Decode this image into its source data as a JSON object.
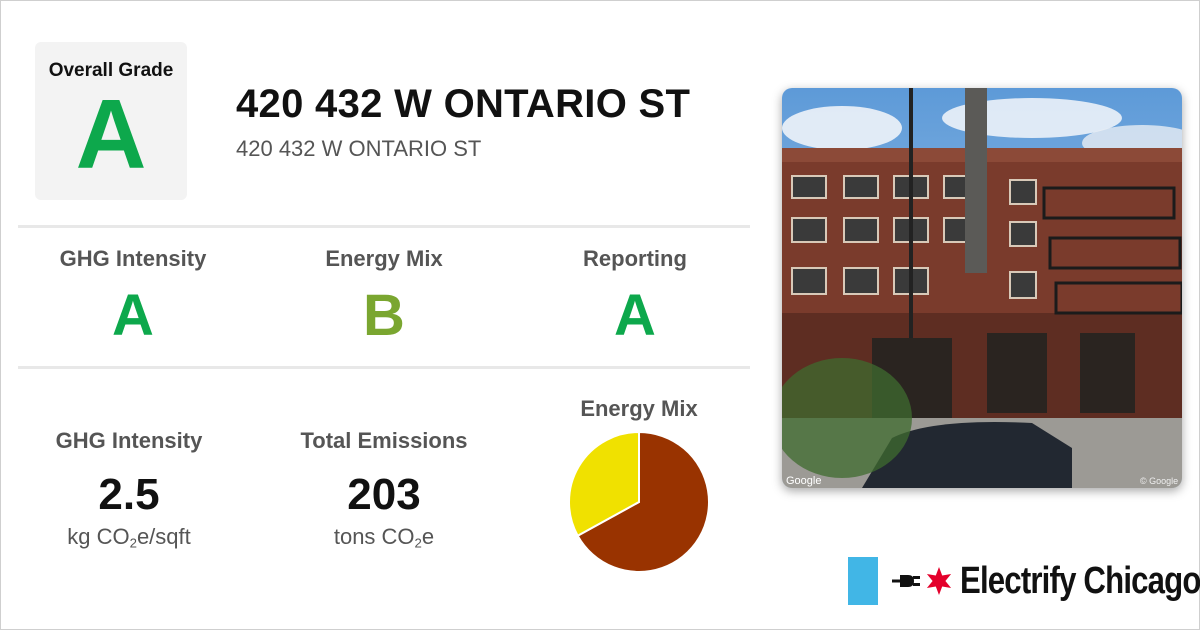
{
  "colors": {
    "grade_A": "#0da84c",
    "grade_B": "#7aa630",
    "pie_gas": "#993300",
    "pie_electric": "#f0e100",
    "chicago_blue": "#41b6e6",
    "chicago_red": "#e4002b"
  },
  "overall": {
    "label": "Overall Grade",
    "grade": "A"
  },
  "building": {
    "title": "420 432 W ONTARIO ST",
    "address": "420 432 W ONTARIO ST"
  },
  "grades": [
    {
      "label": "GHG Intensity",
      "grade": "A"
    },
    {
      "label": "Energy Mix",
      "grade": "B"
    },
    {
      "label": "Reporting",
      "grade": "A"
    }
  ],
  "metrics": {
    "ghg": {
      "label": "GHG Intensity",
      "value": "2.5",
      "unit_pre": "kg CO",
      "unit_sub": "2",
      "unit_post": "e/sqft"
    },
    "total": {
      "label": "Total Emissions",
      "value": "203",
      "unit_pre": "tons CO",
      "unit_sub": "2",
      "unit_post": "e"
    }
  },
  "energy_mix": {
    "label": "Energy Mix",
    "chart_data": {
      "type": "pie",
      "values": [
        0.67,
        0.33
      ],
      "colors": [
        "#993300",
        "#f0e100"
      ]
    }
  },
  "photo": {
    "watermark_left": "Google",
    "watermark_right": "© Google"
  },
  "brand": {
    "name": "Electrify Chicago"
  }
}
